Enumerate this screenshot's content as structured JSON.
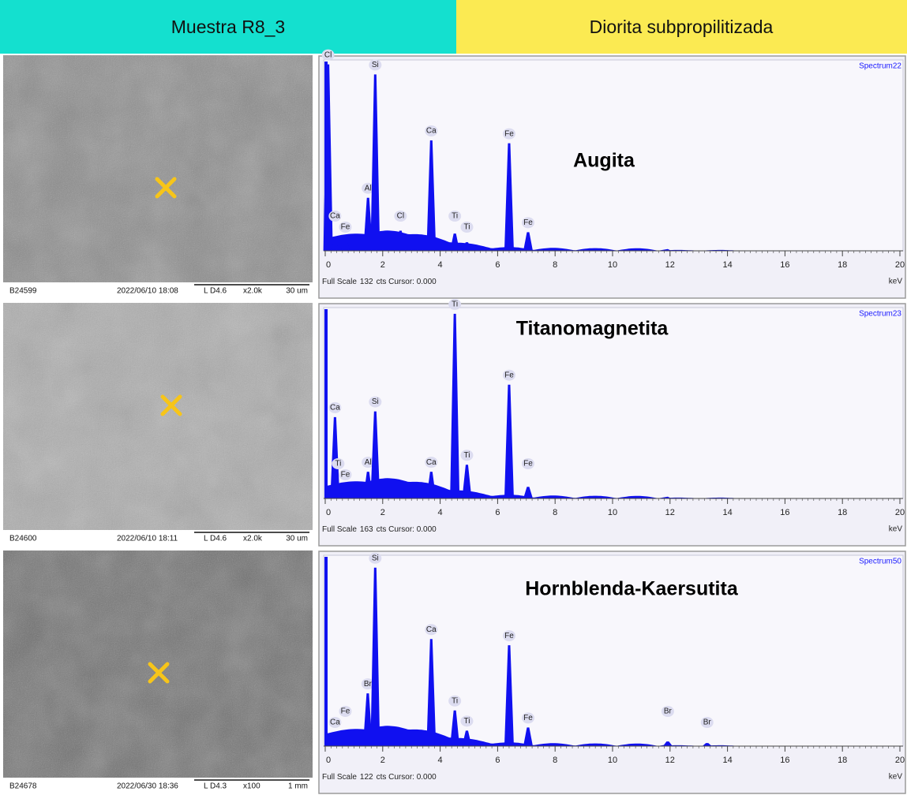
{
  "header": {
    "sample": "Muestra R8_3",
    "rock": "Diorita subpropilitizada"
  },
  "xlim": [
    0,
    20
  ],
  "xticks": [
    0,
    2,
    4,
    6,
    8,
    10,
    12,
    14,
    16,
    18,
    20
  ],
  "panels": [
    {
      "sem": {
        "id": "B24599",
        "datetime": "2022/06/10  18:08",
        "mode": "L D4.6",
        "mag": "x2.0k",
        "scale": "30 um"
      },
      "spectrum": {
        "name": "Spectrum22",
        "mineral": "Augita",
        "footer_prefix": "Full Scale",
        "full_scale": 132,
        "footer_suffix": "cts Cursor: 0.000",
        "unit": "keV",
        "peaks": [
          {
            "label": "Cl",
            "kev": 0.1,
            "cts": 130
          },
          {
            "label": "Ca",
            "kev": 0.34,
            "cts": 6
          },
          {
            "label": "Fe",
            "kev": 0.7,
            "cts": 8
          },
          {
            "label": "Al",
            "kev": 1.49,
            "cts": 37
          },
          {
            "label": "Si",
            "kev": 1.74,
            "cts": 123
          },
          {
            "label": "Cl",
            "kev": 2.62,
            "cts": 14
          },
          {
            "label": "Ca",
            "kev": 3.69,
            "cts": 77
          },
          {
            "label": "Ti",
            "kev": 4.51,
            "cts": 12
          },
          {
            "label": "Ti",
            "kev": 4.93,
            "cts": 6
          },
          {
            "label": "Fe",
            "kev": 6.4,
            "cts": 75
          },
          {
            "label": "Fe",
            "kev": 7.06,
            "cts": 13
          }
        ]
      }
    },
    {
      "sem": {
        "id": "B24600",
        "datetime": "2022/06/10  18:11",
        "mode": "L D4.6",
        "mag": "x2.0k",
        "scale": "30 um"
      },
      "spectrum": {
        "name": "Spectrum23",
        "mineral": "Titanomagnetita",
        "footer_prefix": "Full Scale",
        "full_scale": 163,
        "footer_suffix": "cts Cursor: 0.000",
        "unit": "keV",
        "peaks": [
          {
            "label": "Ca",
            "kev": 0.34,
            "cts": 70
          },
          {
            "label": "Ti",
            "kev": 0.45,
            "cts": 5
          },
          {
            "label": "Fe",
            "kev": 0.7,
            "cts": 10
          },
          {
            "label": "Al",
            "kev": 1.49,
            "cts": 23
          },
          {
            "label": "Si",
            "kev": 1.74,
            "cts": 75
          },
          {
            "label": "Ca",
            "kev": 3.69,
            "cts": 23
          },
          {
            "label": "Ti",
            "kev": 4.51,
            "cts": 159
          },
          {
            "label": "Ti",
            "kev": 4.93,
            "cts": 29
          },
          {
            "label": "Fe",
            "kev": 6.4,
            "cts": 98
          },
          {
            "label": "Fe",
            "kev": 7.06,
            "cts": 10
          }
        ]
      }
    },
    {
      "sem": {
        "id": "B24678",
        "datetime": "2022/06/30  18:36",
        "mode": "L D4.3",
        "mag": "x100",
        "scale": "1 mm"
      },
      "spectrum": {
        "name": "Spectrum50",
        "mineral": "Hornblenda-Kaersutita",
        "footer_prefix": "Full Scale",
        "full_scale": 122,
        "footer_suffix": "cts Cursor: 0.000",
        "unit": "keV",
        "peaks": [
          {
            "label": "Ca",
            "kev": 0.34,
            "cts": 6
          },
          {
            "label": "Fe",
            "kev": 0.7,
            "cts": 8
          },
          {
            "label": "Br",
            "kev": 1.48,
            "cts": 34
          },
          {
            "label": "Si",
            "kev": 1.74,
            "cts": 115
          },
          {
            "label": "Ca",
            "kev": 3.69,
            "cts": 69
          },
          {
            "label": "Ti",
            "kev": 4.51,
            "cts": 23
          },
          {
            "label": "Ti",
            "kev": 4.93,
            "cts": 10
          },
          {
            "label": "Fe",
            "kev": 6.4,
            "cts": 65
          },
          {
            "label": "Fe",
            "kev": 7.06,
            "cts": 12
          },
          {
            "label": "Br",
            "kev": 11.92,
            "cts": 3
          },
          {
            "label": "Br",
            "kev": 13.29,
            "cts": 2
          }
        ]
      }
    }
  ]
}
